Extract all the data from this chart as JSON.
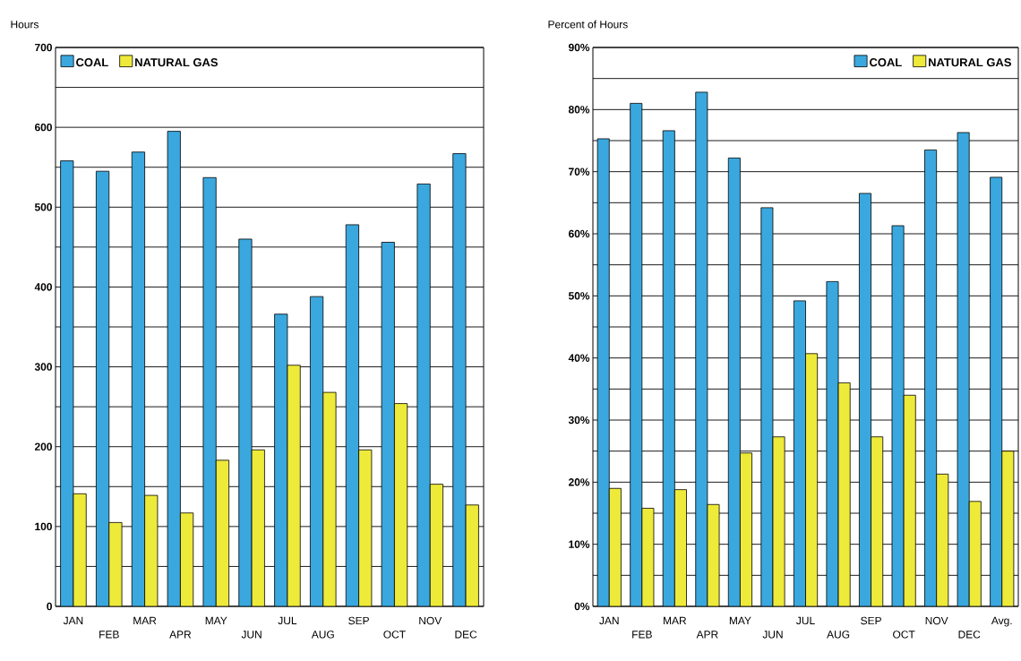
{
  "chart_data": [
    {
      "type": "bar",
      "ylabel": "Hours",
      "categories": [
        "JAN",
        "FEB",
        "MAR",
        "APR",
        "MAY",
        "JUN",
        "JUL",
        "AUG",
        "SEP",
        "OCT",
        "NOV",
        "DEC"
      ],
      "series": [
        {
          "name": "COAL",
          "color": "#3aa8de",
          "values": [
            558,
            545,
            569,
            595,
            537,
            460,
            366,
            388,
            478,
            456,
            529,
            567
          ]
        },
        {
          "name": "NATURAL GAS",
          "color": "#eeea3a",
          "values": [
            141,
            105,
            139,
            117,
            183,
            196,
            302,
            268,
            196,
            254,
            153,
            127
          ]
        }
      ],
      "ylim": [
        0,
        700
      ],
      "yticks": [
        0,
        {
          "value": 50,
          "label": null
        },
        100,
        {
          "value": 150,
          "label": null
        },
        200,
        {
          "value": 250,
          "label": null
        },
        300,
        {
          "value": 350,
          "label": null
        },
        400,
        {
          "value": 450,
          "label": null
        },
        500,
        {
          "value": 550,
          "label": null
        },
        600,
        {
          "value": 650,
          "label": null
        },
        700
      ],
      "grid": "y",
      "legend": "top left"
    },
    {
      "type": "bar",
      "ylabel": "Percent of Hours",
      "categories": [
        "JAN",
        "FEB",
        "MAR",
        "APR",
        "MAY",
        "JUN",
        "JUL",
        "AUG",
        "SEP",
        "OCT",
        "NOV",
        "DEC",
        "Avg."
      ],
      "series": [
        {
          "name": "COAL",
          "color": "#3aa8de",
          "values": [
            75.3,
            81,
            76.6,
            82.8,
            72.2,
            64.2,
            49.2,
            52.3,
            66.5,
            61.3,
            73.5,
            76.3,
            69.1
          ]
        },
        {
          "name": "NATURAL GAS",
          "color": "#eeea3a",
          "values": [
            19,
            15.8,
            18.8,
            16.4,
            24.7,
            27.3,
            40.7,
            36,
            27.3,
            34,
            21.3,
            16.9,
            25
          ]
        }
      ],
      "ylim": [
        0,
        90
      ],
      "yticks": [
        {
          "value": 0,
          "label": "0%"
        },
        {
          "value": 5,
          "label": null
        },
        {
          "value": 10,
          "label": "10%"
        },
        {
          "value": 15,
          "label": null
        },
        {
          "value": 20,
          "label": "20%"
        },
        {
          "value": 25,
          "label": null
        },
        {
          "value": 30,
          "label": "30%"
        },
        {
          "value": 35,
          "label": null
        },
        {
          "value": 40,
          "label": "40%"
        },
        {
          "value": 45,
          "label": null
        },
        {
          "value": 50,
          "label": "50%"
        },
        {
          "value": 55,
          "label": null
        },
        {
          "value": 60,
          "label": "60%"
        },
        {
          "value": 65,
          "label": null
        },
        {
          "value": 70,
          "label": "70%"
        },
        {
          "value": 75,
          "label": null
        },
        {
          "value": 80,
          "label": "80%"
        },
        {
          "value": 85,
          "label": null
        },
        {
          "value": 90,
          "label": "90%"
        }
      ],
      "grid": "y",
      "legend": "top right"
    }
  ]
}
